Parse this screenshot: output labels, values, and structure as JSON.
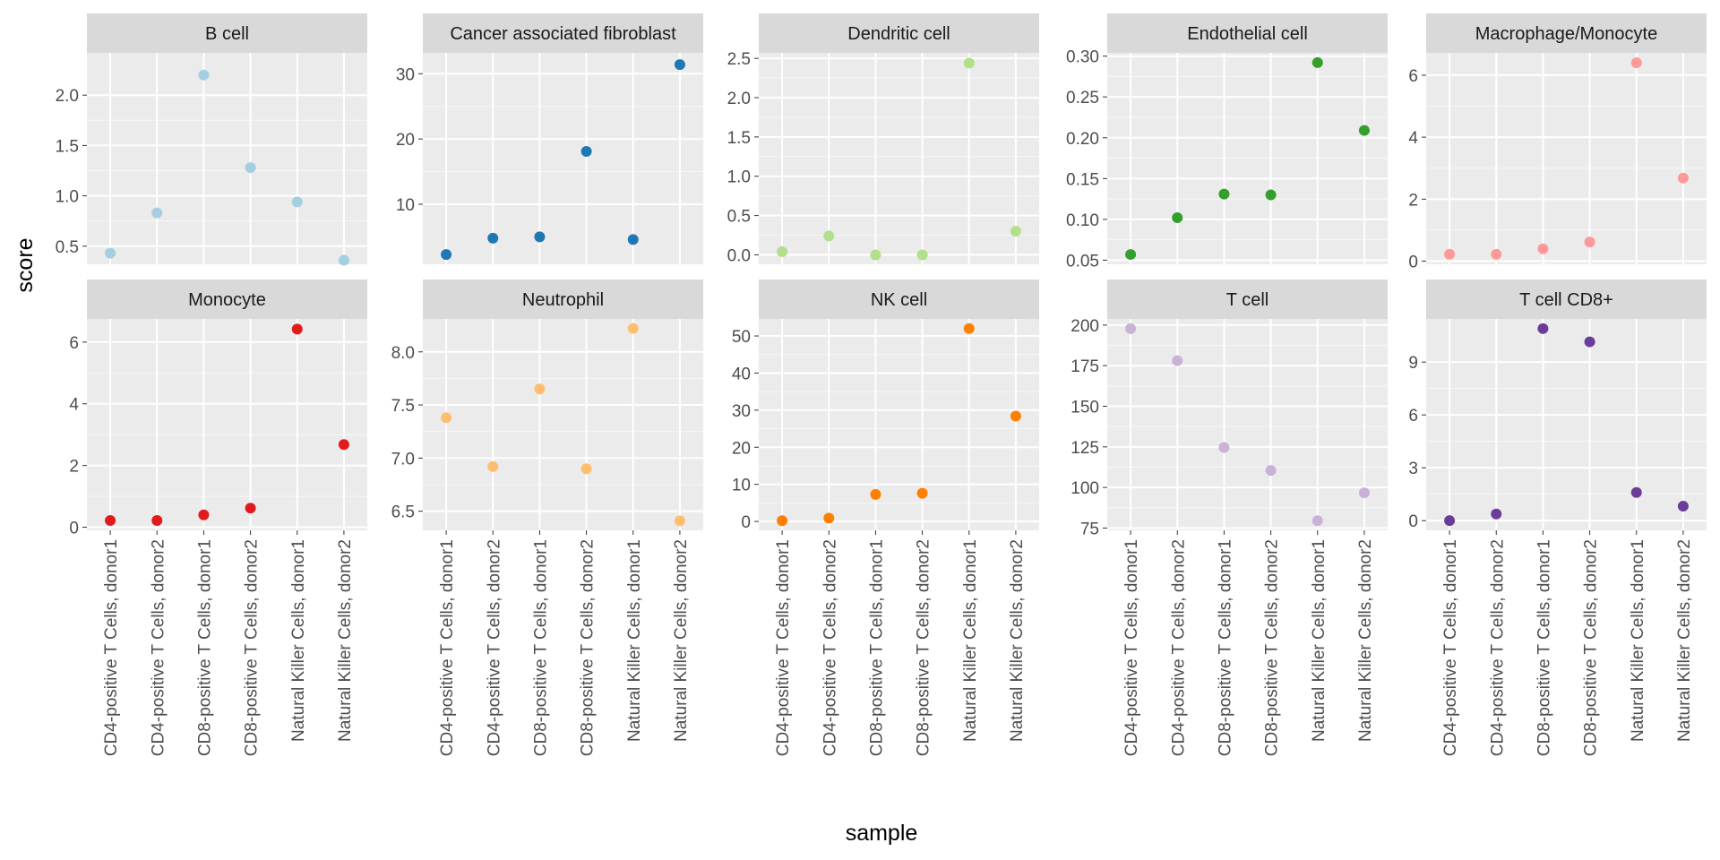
{
  "chart_data": {
    "type": "scatter",
    "facet": "wrap",
    "xlabel": "sample",
    "ylabel": "score",
    "categories": [
      "CD4-positive T Cells, donor1",
      "CD4-positive T Cells, donor2",
      "CD8-positive T Cells, donor1",
      "CD8-positive T Cells, donor2",
      "Natural Killer Cells, donor1",
      "Natural Killer Cells, donor2"
    ],
    "panels": [
      {
        "title": "B cell",
        "color": "#a6cee3",
        "values": [
          0.43,
          0.83,
          2.2,
          1.28,
          0.94,
          0.36
        ],
        "ylim": [
          0.32,
          2.42
        ],
        "ticks": [
          0.5,
          1.0,
          1.5,
          2.0
        ],
        "tick_labels": [
          "0.5",
          "1.0",
          "1.5",
          "2.0"
        ]
      },
      {
        "title": "Cancer associated fibroblast",
        "color": "#1f78b4",
        "values": [
          2.3,
          4.8,
          5.0,
          18.1,
          4.6,
          31.4
        ],
        "ylim": [
          0.8,
          33.2
        ],
        "ticks": [
          10,
          20,
          30
        ],
        "tick_labels": [
          "10",
          "20",
          "30"
        ]
      },
      {
        "title": "Dendritic cell",
        "color": "#b2df8a",
        "values": [
          0.04,
          0.24,
          0.0,
          0.0,
          2.44,
          0.3
        ],
        "ylim": [
          -0.12,
          2.57
        ],
        "ticks": [
          0.0,
          0.5,
          1.0,
          1.5,
          2.0,
          2.5
        ],
        "tick_labels": [
          "0.0",
          "0.5",
          "1.0",
          "1.5",
          "2.0",
          "2.5"
        ]
      },
      {
        "title": "Endothelial cell",
        "color": "#33a02c",
        "values": [
          0.057,
          0.102,
          0.131,
          0.13,
          0.292,
          0.209
        ],
        "ylim": [
          0.045,
          0.304
        ],
        "ticks": [
          0.05,
          0.1,
          0.15,
          0.2,
          0.25,
          0.3
        ],
        "tick_labels": [
          "0.05",
          "0.10",
          "0.15",
          "0.20",
          "0.25",
          "0.30"
        ]
      },
      {
        "title": "Macrophage/Monocyte",
        "color": "#fb9a99",
        "values": [
          0.22,
          0.22,
          0.4,
          0.62,
          6.4,
          2.68
        ],
        "ylim": [
          -0.1,
          6.72
        ],
        "ticks": [
          0,
          2,
          4,
          6
        ],
        "tick_labels": [
          "0",
          "2",
          "4",
          "6"
        ]
      },
      {
        "title": "Monocyte",
        "color": "#e31a1c",
        "values": [
          0.22,
          0.22,
          0.4,
          0.62,
          6.42,
          2.68
        ],
        "ylim": [
          -0.1,
          6.75
        ],
        "ticks": [
          0,
          2,
          4,
          6
        ],
        "tick_labels": [
          "0",
          "2",
          "4",
          "6"
        ]
      },
      {
        "title": "Neutrophil",
        "color": "#fdbf6f",
        "values": [
          7.38,
          6.92,
          7.65,
          6.9,
          8.22,
          6.41
        ],
        "ylim": [
          6.32,
          8.31
        ],
        "ticks": [
          6.5,
          7.0,
          7.5,
          8.0
        ],
        "tick_labels": [
          "6.5",
          "7.0",
          "7.5",
          "8.0"
        ]
      },
      {
        "title": "NK cell",
        "color": "#ff7f00",
        "values": [
          0.2,
          0.9,
          7.3,
          7.6,
          52.0,
          28.4
        ],
        "ylim": [
          -2.4,
          54.6
        ],
        "ticks": [
          0,
          10,
          20,
          30,
          40,
          50
        ],
        "tick_labels": [
          "0",
          "10",
          "20",
          "30",
          "40",
          "50"
        ]
      },
      {
        "title": "T cell",
        "color": "#cab2d6",
        "values": [
          197.8,
          178.1,
          124.6,
          110.5,
          79.5,
          96.7
        ],
        "ylim": [
          73.6,
          203.8
        ],
        "ticks": [
          75,
          100,
          125,
          150,
          175,
          200
        ],
        "tick_labels": [
          "75",
          "100",
          "125",
          "150",
          "175",
          "200"
        ]
      },
      {
        "title": "T cell CD8+",
        "color": "#6a3d9a",
        "values": [
          0.0,
          0.38,
          10.9,
          10.15,
          1.6,
          0.82
        ],
        "ylim": [
          -0.55,
          11.45
        ],
        "ticks": [
          0,
          3,
          6,
          9
        ],
        "tick_labels": [
          "0",
          "3",
          "6",
          "9"
        ]
      }
    ]
  }
}
